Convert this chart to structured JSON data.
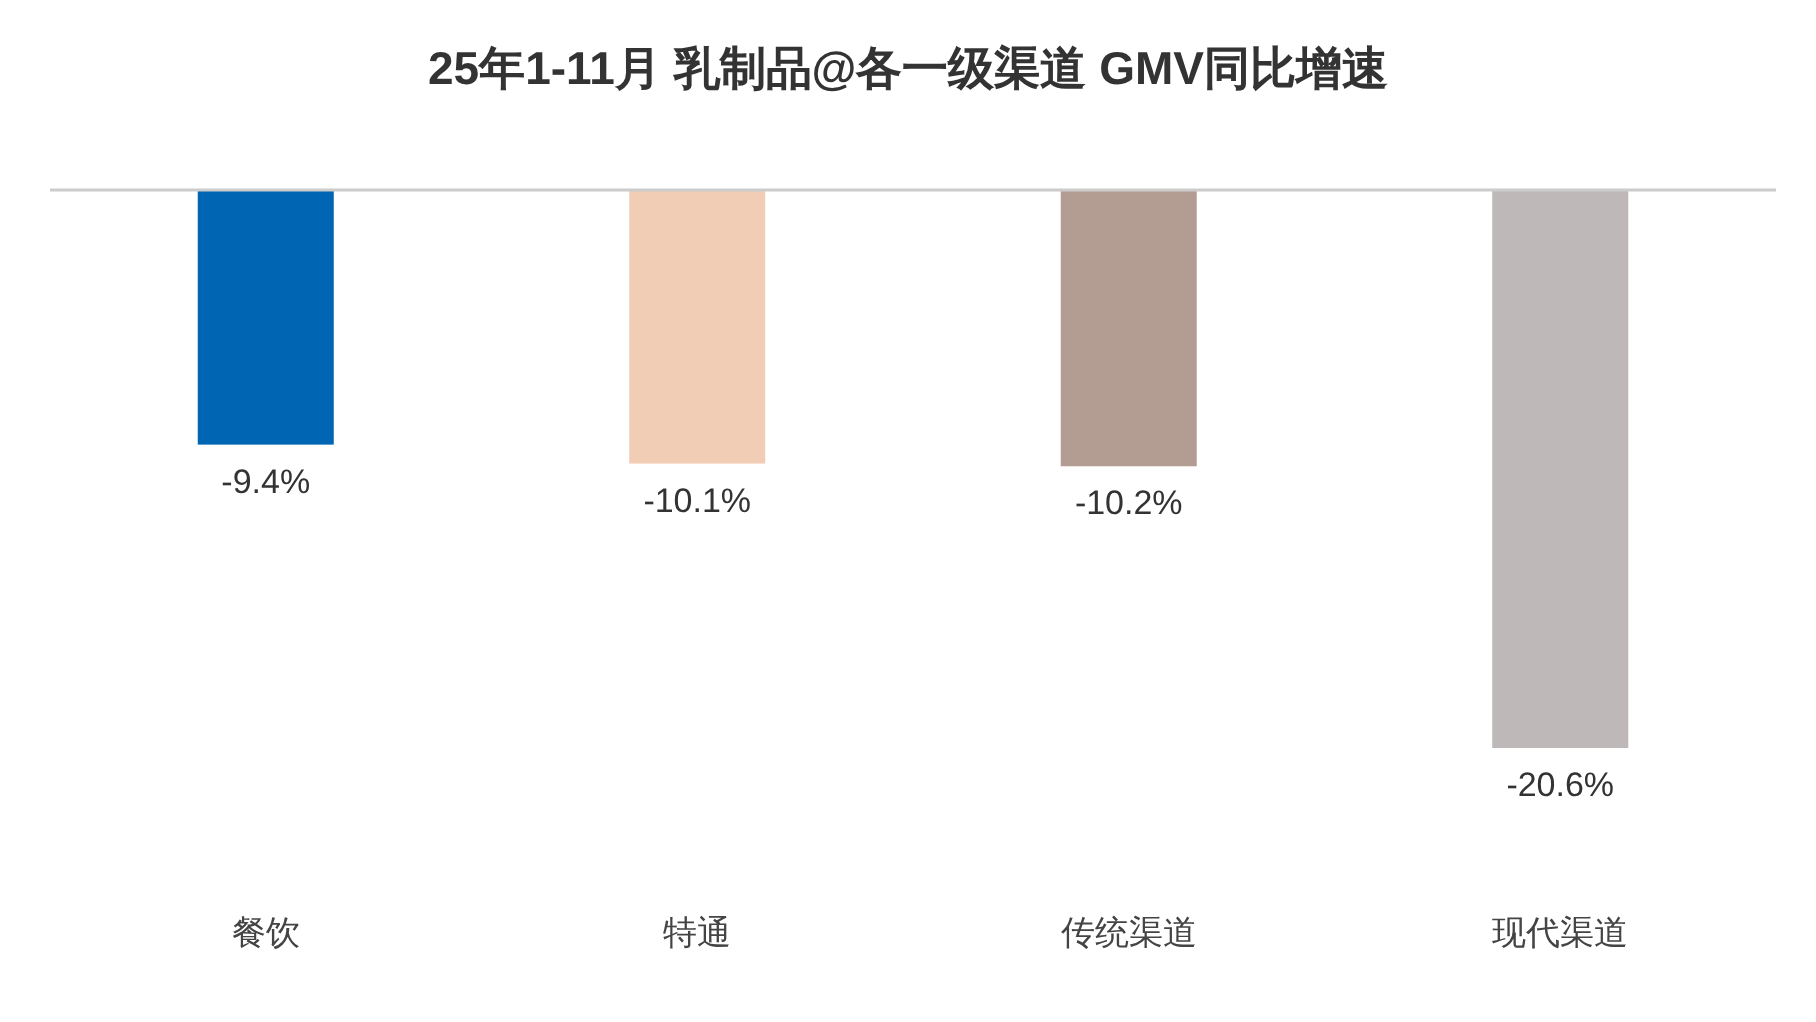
{
  "chart_data": {
    "type": "bar",
    "title": "25年1-11月 乳制品@各一级渠道 GMV同比增速",
    "categories": [
      "餐饮",
      "特通",
      "传统渠道",
      "现代渠道"
    ],
    "values": [
      -9.4,
      -10.1,
      -10.2,
      -20.6
    ],
    "colors": [
      "#0066b3",
      "#f2cdb5",
      "#b39d92",
      "#bfb8b8"
    ],
    "value_labels": [
      "-9.4%",
      "-10.1%",
      "-10.2%",
      "-20.6%"
    ]
  }
}
